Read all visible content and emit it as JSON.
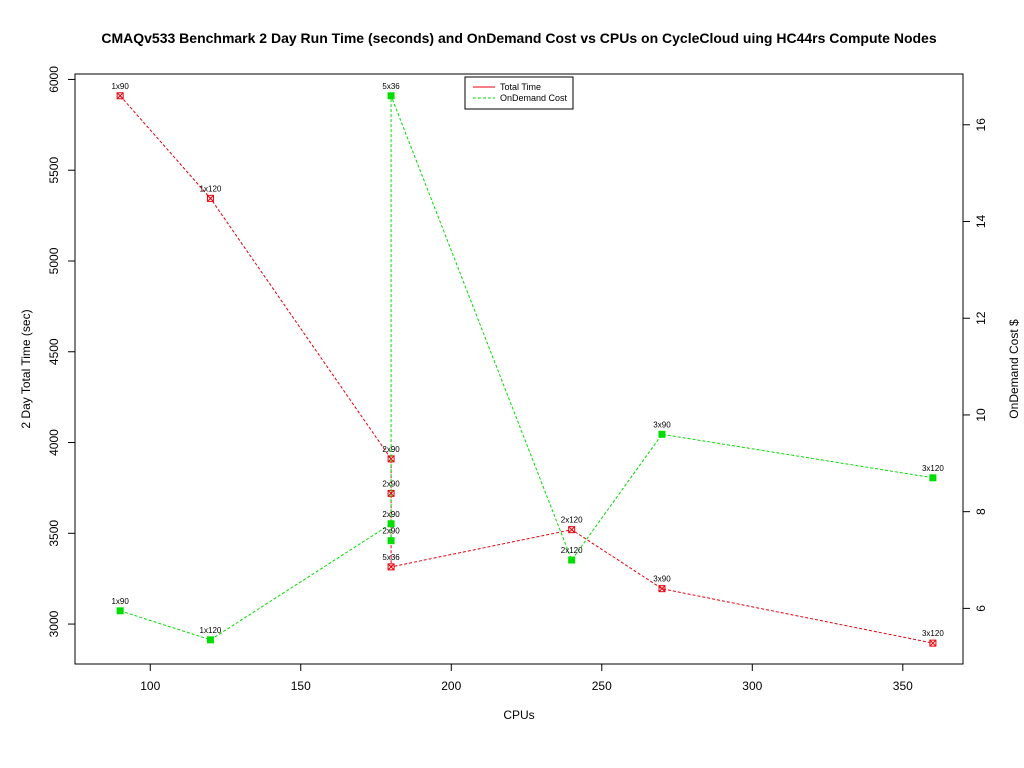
{
  "chart_data": {
    "type": "line",
    "title": "CMAQv533 Benchmark 2 Day Run Time (seconds) and OnDemand Cost vs CPUs on CycleCloud uing HC44rs Compute Nodes",
    "xlabel": "CPUs",
    "ylabel_left": "2 Day Total Time (sec)",
    "ylabel_right": "OnDemand Cost $",
    "xlim": [
      75,
      370
    ],
    "ylim_left": [
      2780,
      6030
    ],
    "ylim_right": [
      4.85,
      17.05
    ],
    "x_ticks": [
      100,
      150,
      200,
      250,
      300,
      350
    ],
    "y_ticks_left": [
      3000,
      3500,
      4000,
      4500,
      5000,
      5500,
      6000
    ],
    "y_ticks_right": [
      6,
      8,
      10,
      12,
      14,
      16
    ],
    "legend_position": "top-center",
    "series": [
      {
        "name": "Total Time",
        "axis": "left",
        "color": "#e8000b",
        "marker": "square-x",
        "line": "dashed",
        "x": [
          90,
          120,
          180,
          180,
          180,
          240,
          270,
          360
        ],
        "y": [
          5910,
          5345,
          3910,
          3720,
          3315,
          3520,
          3195,
          2895
        ],
        "labels": [
          "1x90",
          "1x120",
          "2x90",
          "2x90",
          "5x36",
          "2x120",
          "3x90",
          "3x120"
        ]
      },
      {
        "name": "OnDemand Cost",
        "axis": "right",
        "color": "#00dd00",
        "marker": "square-filled",
        "line": "dashed",
        "x": [
          90,
          120,
          180,
          180,
          180,
          240,
          270,
          360
        ],
        "y": [
          5.95,
          5.35,
          7.75,
          7.4,
          16.6,
          7.0,
          9.6,
          8.7
        ],
        "labels": [
          "1x90",
          "1x120",
          "2x90",
          "2x90",
          "5x36",
          "2x120",
          "3x90",
          "3x120"
        ]
      }
    ]
  }
}
